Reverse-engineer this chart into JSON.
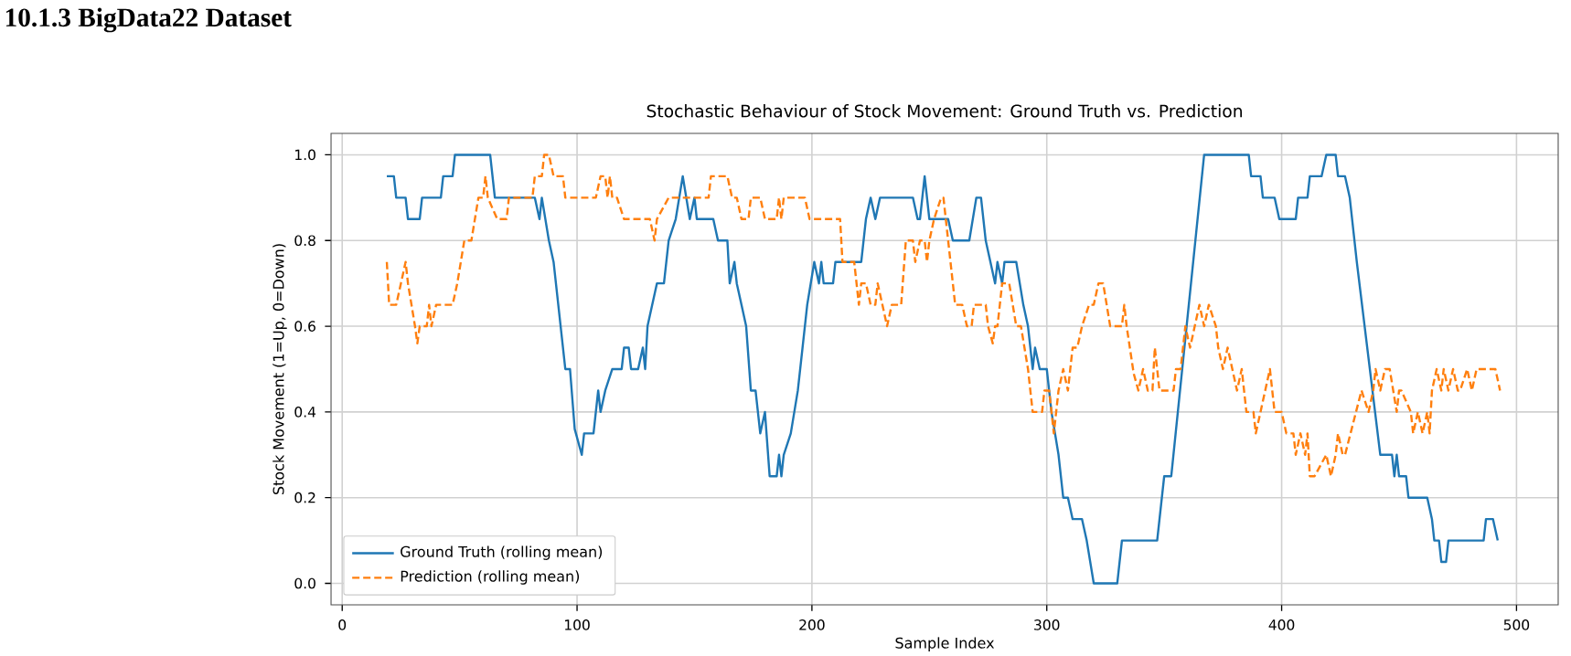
{
  "chart_data": {
    "type": "line",
    "title": "Stochastic Behaviour of Stock Movement: Ground Truth vs. Prediction",
    "xlabel": "Sample Index",
    "ylabel": "Stock Movement (1=Up, 0=Down)",
    "annotations": [
      "10.1.3   BigData22 Dataset"
    ],
    "xlim": [
      -4.75,
      517.75
    ],
    "ylim": [
      -0.05,
      1.05
    ],
    "xticks": [
      0,
      100,
      200,
      300,
      400,
      500
    ],
    "yticks": [
      {
        "value": 0,
        "label": "0.0"
      },
      {
        "value": 0.2,
        "label": "0.2"
      },
      {
        "value": 0.4,
        "label": "0.4"
      },
      {
        "value": 0.6,
        "label": "0.6"
      },
      {
        "value": 0.8,
        "label": "0.8"
      },
      {
        "value": 1.0,
        "label": "1.0"
      }
    ],
    "grid": true,
    "legend": "bottom left",
    "series": [
      {
        "name": "Ground Truth (rolling mean)",
        "color": "#1f77b4",
        "line_style": "solid",
        "x": [
          19,
          22,
          23,
          27,
          28,
          33,
          34,
          42,
          43,
          47,
          48,
          63,
          65,
          82,
          84,
          85,
          88,
          90,
          95,
          97,
          99,
          102,
          103,
          107,
          109,
          110,
          112,
          115,
          119,
          120,
          122,
          123,
          126,
          128,
          129,
          130,
          134,
          137,
          139,
          142,
          145,
          148,
          150,
          151,
          158,
          160,
          164,
          165,
          167,
          168,
          170,
          172,
          174,
          176,
          178,
          180,
          182,
          185,
          186,
          187,
          188,
          191,
          194,
          196,
          198,
          201,
          203,
          204,
          205,
          209,
          210,
          221,
          223,
          225,
          227,
          229,
          243,
          245,
          246,
          248,
          250,
          258,
          260,
          267,
          270,
          272,
          274,
          276,
          278,
          279,
          281,
          282,
          287,
          290,
          292,
          294,
          295,
          297,
          300,
          302,
          305,
          307,
          309,
          311,
          315,
          317,
          320,
          330,
          332,
          347,
          350,
          353,
          367,
          386,
          387,
          391,
          392,
          397,
          399,
          406,
          407,
          411,
          412,
          417,
          419,
          423,
          424,
          427,
          429,
          432,
          442,
          447,
          448,
          449,
          450,
          453,
          454,
          462,
          464,
          465,
          467,
          468,
          470,
          471,
          486,
          487,
          490,
          492
        ],
        "values": [
          0.95,
          0.95,
          0.9,
          0.9,
          0.85,
          0.85,
          0.9,
          0.9,
          0.95,
          0.95,
          1.0,
          1.0,
          0.9,
          0.9,
          0.85,
          0.9,
          0.8,
          0.75,
          0.5,
          0.5,
          0.36,
          0.3,
          0.35,
          0.35,
          0.45,
          0.4,
          0.45,
          0.5,
          0.5,
          0.55,
          0.55,
          0.5,
          0.5,
          0.55,
          0.5,
          0.6,
          0.7,
          0.7,
          0.8,
          0.85,
          0.95,
          0.85,
          0.9,
          0.85,
          0.85,
          0.8,
          0.8,
          0.7,
          0.75,
          0.7,
          0.65,
          0.6,
          0.45,
          0.45,
          0.35,
          0.4,
          0.25,
          0.25,
          0.3,
          0.25,
          0.3,
          0.35,
          0.45,
          0.55,
          0.65,
          0.75,
          0.7,
          0.75,
          0.7,
          0.7,
          0.75,
          0.75,
          0.85,
          0.9,
          0.85,
          0.9,
          0.9,
          0.85,
          0.85,
          0.95,
          0.85,
          0.85,
          0.8,
          0.8,
          0.9,
          0.9,
          0.8,
          0.75,
          0.7,
          0.75,
          0.7,
          0.75,
          0.75,
          0.65,
          0.6,
          0.5,
          0.55,
          0.5,
          0.5,
          0.4,
          0.3,
          0.2,
          0.2,
          0.15,
          0.15,
          0.1,
          0.0,
          0.0,
          0.1,
          0.1,
          0.25,
          0.25,
          1.0,
          1.0,
          0.95,
          0.95,
          0.9,
          0.9,
          0.85,
          0.85,
          0.9,
          0.9,
          0.95,
          0.95,
          1.0,
          1.0,
          0.95,
          0.95,
          0.9,
          0.75,
          0.3,
          0.3,
          0.25,
          0.3,
          0.25,
          0.25,
          0.2,
          0.2,
          0.15,
          0.1,
          0.1,
          0.05,
          0.05,
          0.1,
          0.1,
          0.15,
          0.15,
          0.1
        ]
      },
      {
        "name": "Prediction (rolling mean)",
        "color": "#ff7f0e",
        "line_style": "dashed",
        "x": [
          19,
          20,
          23,
          25,
          27,
          28,
          31,
          32,
          33,
          36,
          37,
          38,
          40,
          47,
          49,
          52,
          55,
          58,
          60,
          61,
          62,
          66,
          70,
          71,
          81,
          82,
          85,
          86,
          88,
          90,
          94,
          95,
          108,
          110,
          112,
          113,
          114,
          115,
          117,
          120,
          131,
          133,
          134,
          139,
          156,
          157,
          164,
          166,
          168,
          170,
          173,
          174,
          178,
          180,
          185,
          186,
          187,
          188,
          189,
          197,
          199,
          212,
          213,
          218,
          220,
          221,
          223,
          225,
          227,
          228,
          230,
          232,
          234,
          238,
          240,
          243,
          244,
          246,
          248,
          249,
          250,
          252,
          255,
          256,
          258,
          261,
          264,
          266,
          268,
          269,
          274,
          275,
          277,
          278,
          279,
          281,
          284,
          287,
          289,
          292,
          294,
          298,
          299,
          301,
          303,
          305,
          307,
          309,
          311,
          313,
          315,
          318,
          320,
          322,
          324,
          327,
          332,
          333,
          334,
          337,
          339,
          341,
          343,
          345,
          346,
          348,
          350,
          354,
          355,
          357,
          359,
          361,
          363,
          365,
          367,
          369,
          372,
          373,
          375,
          377,
          379,
          381,
          383,
          385,
          388,
          389,
          391,
          393,
          395,
          397,
          400,
          402,
          405,
          406,
          408,
          410,
          411,
          412,
          414,
          419,
          421,
          423,
          424,
          426,
          427,
          434,
          437,
          439,
          440,
          442,
          444,
          446,
          449,
          450,
          451,
          455,
          456,
          458,
          460,
          462,
          463,
          464,
          466,
          468,
          469,
          471,
          473,
          475,
          476,
          479,
          481,
          483,
          491,
          493
        ],
        "values": [
          0.75,
          0.65,
          0.65,
          0.7,
          0.75,
          0.7,
          0.6,
          0.56,
          0.6,
          0.6,
          0.65,
          0.6,
          0.65,
          0.65,
          0.7,
          0.8,
          0.8,
          0.9,
          0.9,
          0.95,
          0.9,
          0.85,
          0.85,
          0.9,
          0.9,
          0.95,
          0.95,
          1.0,
          1.0,
          0.95,
          0.95,
          0.9,
          0.9,
          0.95,
          0.95,
          0.9,
          0.95,
          0.9,
          0.9,
          0.85,
          0.85,
          0.8,
          0.85,
          0.9,
          0.9,
          0.95,
          0.95,
          0.9,
          0.9,
          0.85,
          0.85,
          0.9,
          0.9,
          0.85,
          0.85,
          0.9,
          0.85,
          0.9,
          0.9,
          0.9,
          0.85,
          0.85,
          0.75,
          0.75,
          0.65,
          0.7,
          0.7,
          0.65,
          0.65,
          0.7,
          0.65,
          0.6,
          0.65,
          0.65,
          0.8,
          0.8,
          0.75,
          0.8,
          0.8,
          0.75,
          0.8,
          0.85,
          0.9,
          0.9,
          0.8,
          0.65,
          0.65,
          0.6,
          0.6,
          0.65,
          0.65,
          0.6,
          0.56,
          0.6,
          0.6,
          0.7,
          0.7,
          0.6,
          0.6,
          0.5,
          0.4,
          0.4,
          0.45,
          0.45,
          0.35,
          0.45,
          0.5,
          0.45,
          0.55,
          0.55,
          0.6,
          0.65,
          0.65,
          0.7,
          0.7,
          0.6,
          0.6,
          0.65,
          0.6,
          0.49,
          0.45,
          0.5,
          0.45,
          0.45,
          0.55,
          0.45,
          0.45,
          0.45,
          0.5,
          0.5,
          0.6,
          0.55,
          0.6,
          0.65,
          0.6,
          0.65,
          0.6,
          0.55,
          0.5,
          0.55,
          0.5,
          0.45,
          0.5,
          0.4,
          0.4,
          0.35,
          0.4,
          0.45,
          0.5,
          0.4,
          0.4,
          0.35,
          0.35,
          0.3,
          0.35,
          0.3,
          0.35,
          0.25,
          0.25,
          0.3,
          0.25,
          0.3,
          0.35,
          0.3,
          0.3,
          0.45,
          0.4,
          0.45,
          0.5,
          0.45,
          0.5,
          0.5,
          0.4,
          0.45,
          0.45,
          0.4,
          0.35,
          0.4,
          0.35,
          0.4,
          0.35,
          0.45,
          0.5,
          0.45,
          0.5,
          0.45,
          0.5,
          0.45,
          0.45,
          0.5,
          0.45,
          0.5,
          0.5,
          0.45
        ]
      }
    ]
  }
}
